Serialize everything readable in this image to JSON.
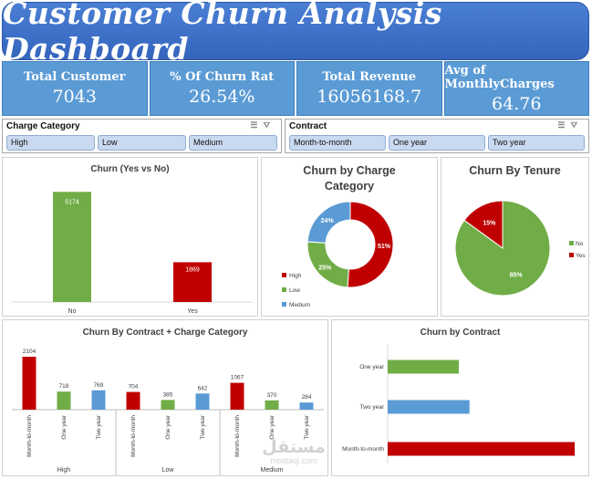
{
  "header": {
    "title": "Customer Churn Analysis Dashboard"
  },
  "kpis": [
    {
      "label": "Total Customer",
      "value": "7043"
    },
    {
      "label": "% Of Churn Rat",
      "value": "26.54%"
    },
    {
      "label": "Total Revenue",
      "value": "16056168.7"
    },
    {
      "label": "Avg of MonthlyCharges",
      "value": "64.76"
    }
  ],
  "slicers": {
    "charge": {
      "title": "Charge Category",
      "options": [
        "High",
        "Low",
        "Medium"
      ]
    },
    "contract": {
      "title": "Contract",
      "options": [
        "Month-to-month",
        "One year",
        "Two year"
      ]
    }
  },
  "colors": {
    "green": "#70ad47",
    "red": "#c00000",
    "blue": "#5b9bd5"
  },
  "chart_data": [
    {
      "type": "bar",
      "title": "Churn (Yes vs No)",
      "categories": [
        "No",
        "Yes"
      ],
      "values": [
        5174,
        1869
      ],
      "colors": [
        "#70ad47",
        "#c00000"
      ],
      "ylim": [
        0,
        6000
      ]
    },
    {
      "type": "pie",
      "donut": true,
      "title": "Churn by Charge Category",
      "labels": [
        "High",
        "Low",
        "Medium"
      ],
      "values": [
        51,
        25,
        24
      ],
      "display": [
        "51%",
        "25%",
        "24%"
      ],
      "colors": [
        "#c00000",
        "#70ad47",
        "#5b9bd5"
      ],
      "legend": "bottom-left"
    },
    {
      "type": "pie",
      "title": "Churn By Tenure",
      "labels": [
        "No",
        "Yes"
      ],
      "values": [
        85,
        15
      ],
      "display": [
        "85%",
        "15%"
      ],
      "colors": [
        "#70ad47",
        "#c00000"
      ],
      "legend": "right"
    },
    {
      "type": "bar",
      "title": "Churn By Contract + Charge Category",
      "groups": [
        "High",
        "Low",
        "Medium"
      ],
      "categories": [
        "Month-to-month",
        "One year",
        "Two year"
      ],
      "colors": [
        "#c00000",
        "#70ad47",
        "#5b9bd5"
      ],
      "values": [
        [
          2104,
          718,
          769
        ],
        [
          704,
          385,
          642
        ],
        [
          1067,
          370,
          284
        ]
      ],
      "ylim": [
        0,
        2300
      ]
    },
    {
      "type": "bar",
      "orientation": "horizontal",
      "title": "Churn by Contract",
      "categories": [
        "One year",
        "Two year",
        "Month-to-month"
      ],
      "values": [
        1473,
        1695,
        3875
      ],
      "colors": [
        "#70ad47",
        "#5b9bd5",
        "#c00000"
      ],
      "xlim": [
        0,
        4100
      ]
    }
  ],
  "watermark": {
    "text": "مستقل",
    "sub": "mostaql.com"
  }
}
